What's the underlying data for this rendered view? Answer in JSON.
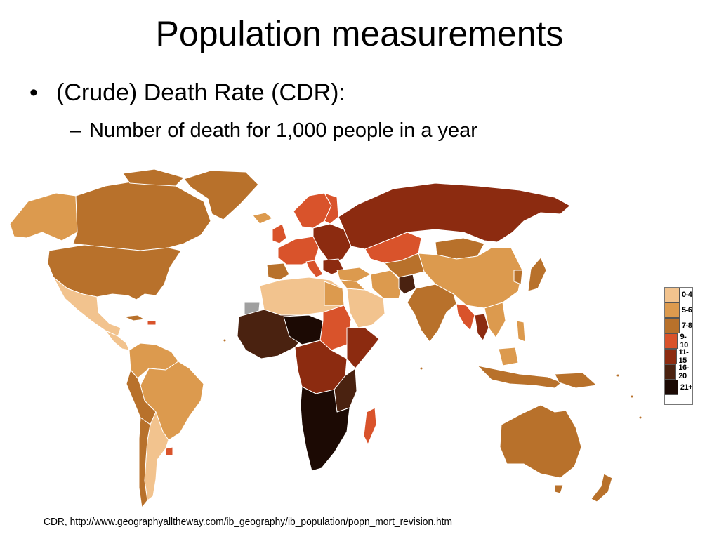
{
  "slide": {
    "title": "Population measurements",
    "bullet_level1": "(Crude) Death Rate (CDR):",
    "bullet_level1_marker": "•",
    "bullet_level2": "Number of death for 1,000 people in a year",
    "bullet_level2_marker": "–",
    "source": "CDR, http://www.geographyalltheway.com/ib_geography/ib_population/popn_mort_revision.htm"
  },
  "legend": {
    "items": [
      {
        "label": "0-4",
        "color": "#f2c38e"
      },
      {
        "label": "5-6",
        "color": "#dc9a4e"
      },
      {
        "label": "7-8",
        "color": "#b8712b"
      },
      {
        "label": "9-10",
        "color": "#d9532b"
      },
      {
        "label": "11-15",
        "color": "#8c2b10"
      },
      {
        "label": "16-20",
        "color": "#4a2210"
      },
      {
        "label": "21+",
        "color": "#1c0a04"
      }
    ]
  },
  "colors": {
    "no_data": "#a0a0a0",
    "border": "#ffffff"
  }
}
